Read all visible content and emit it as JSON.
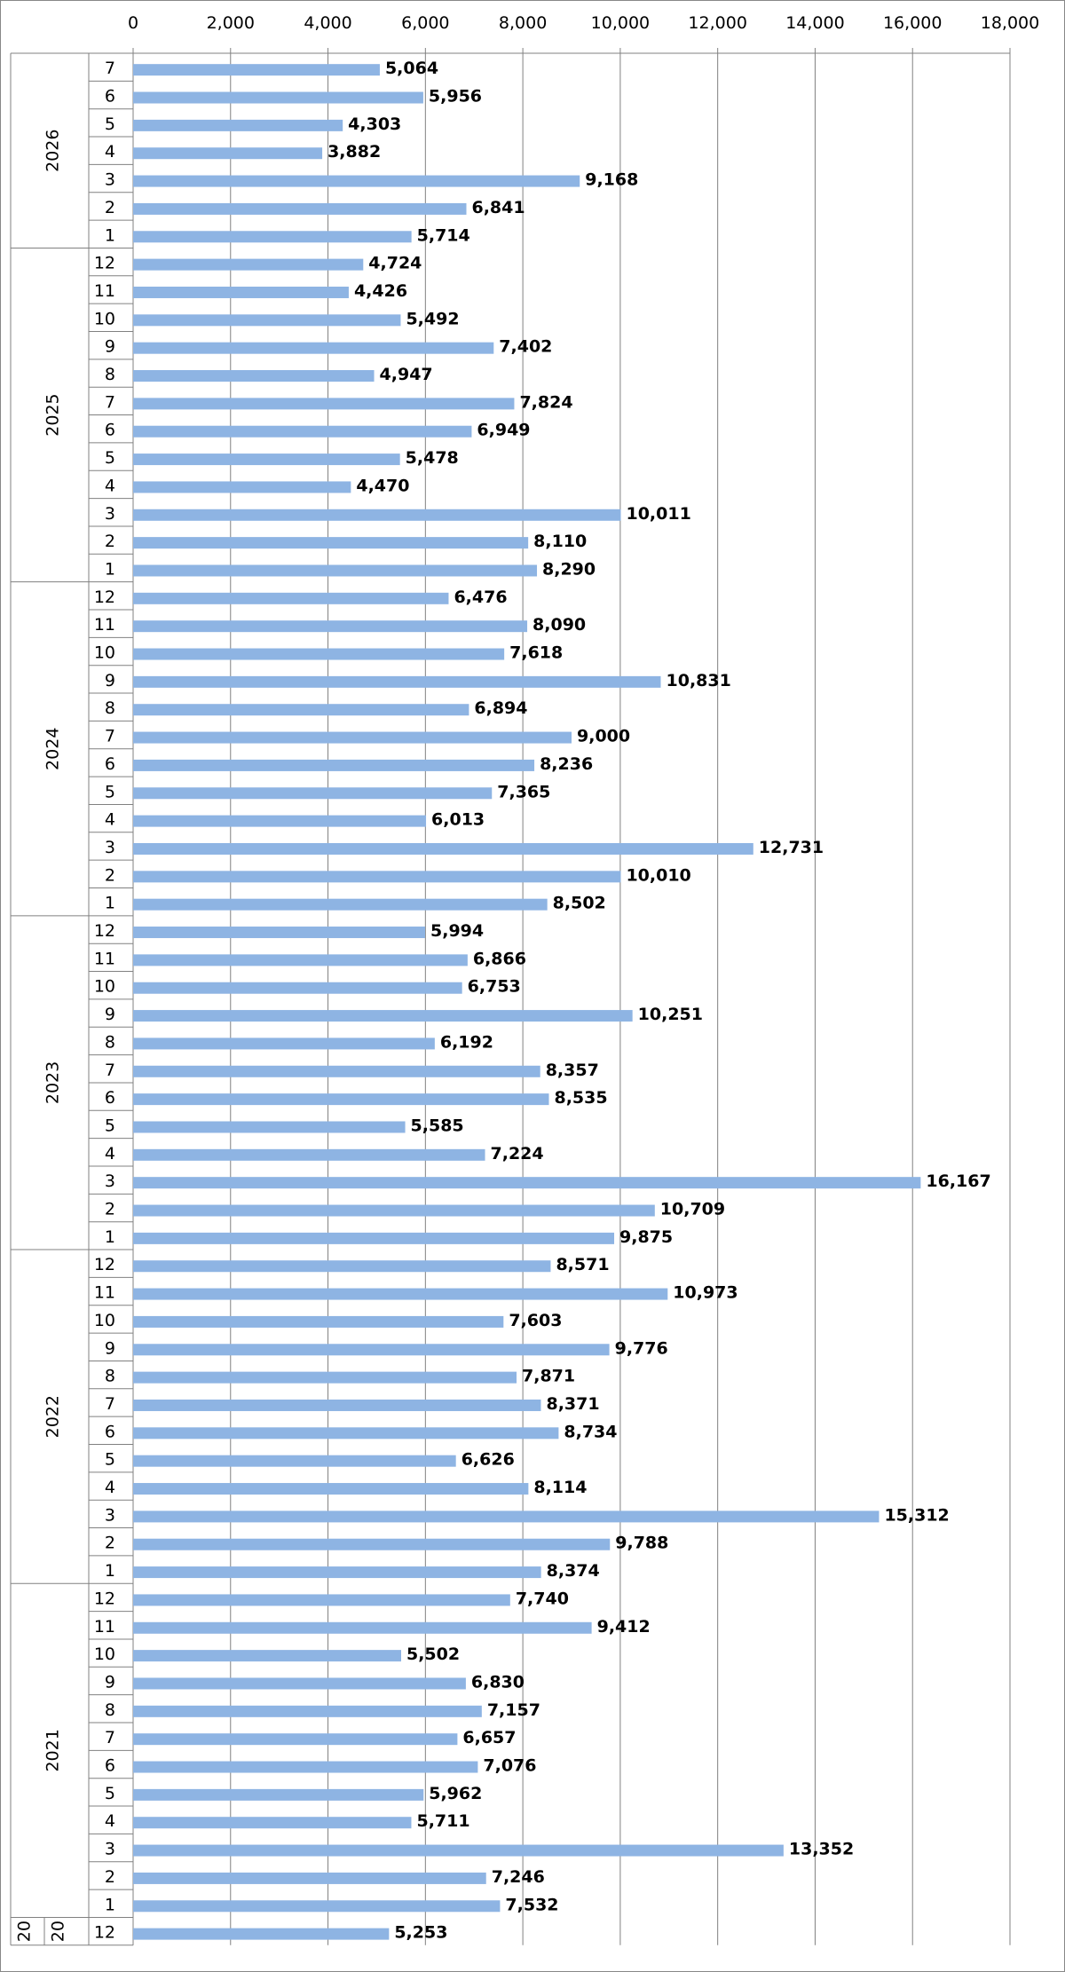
{
  "chart_data": {
    "type": "bar",
    "orientation": "horizontal",
    "title": "",
    "xlabel": "",
    "ylabel": "",
    "xlim": [
      0,
      18000
    ],
    "x_ticks": [
      "0",
      "2,000",
      "4,000",
      "6,000",
      "8,000",
      "10,000",
      "12,000",
      "14,000",
      "16,000",
      "18,000"
    ],
    "x_tick_values": [
      0,
      2000,
      4000,
      6000,
      8000,
      10000,
      12000,
      14000,
      16000,
      18000
    ],
    "grid": "vertical",
    "legend": "none",
    "bar_color": "#8EB4E3",
    "categories_top_to_bottom": [
      {
        "year": "2026",
        "months": [
          "7",
          "6",
          "5",
          "4",
          "3",
          "2",
          "1"
        ],
        "values": [
          5064,
          5956,
          4303,
          3882,
          9168,
          6841,
          5714
        ],
        "labels": [
          "5,064",
          "5,956",
          "4,303",
          "3,882",
          "9,168",
          "6,841",
          "5,714"
        ]
      },
      {
        "year": "2025",
        "months": [
          "12",
          "11",
          "10",
          "9",
          "8",
          "7",
          "6",
          "5",
          "4",
          "3",
          "2",
          "1"
        ],
        "values": [
          4724,
          4426,
          5492,
          7402,
          4947,
          7824,
          6949,
          5478,
          4470,
          10011,
          8110,
          8290
        ],
        "labels": [
          "4,724",
          "4,426",
          "5,492",
          "7,402",
          "4,947",
          "7,824",
          "6,949",
          "5,478",
          "4,470",
          "10,011",
          "8,110",
          "8,290"
        ]
      },
      {
        "year": "2024",
        "months": [
          "12",
          "11",
          "10",
          "9",
          "8",
          "7",
          "6",
          "5",
          "4",
          "3",
          "2",
          "1"
        ],
        "values": [
          6476,
          8090,
          7618,
          10831,
          6894,
          9000,
          8236,
          7365,
          6013,
          12731,
          10010,
          8502
        ],
        "labels": [
          "6,476",
          "8,090",
          "7,618",
          "10,831",
          "6,894",
          "9,000",
          "8,236",
          "7,365",
          "6,013",
          "12,731",
          "10,010",
          "8,502"
        ]
      },
      {
        "year": "2023",
        "months": [
          "12",
          "11",
          "10",
          "9",
          "8",
          "7",
          "6",
          "5",
          "4",
          "3",
          "2",
          "1"
        ],
        "values": [
          5994,
          6866,
          6753,
          10251,
          6192,
          8357,
          8535,
          5585,
          7224,
          16167,
          10709,
          9875
        ],
        "labels": [
          "5,994",
          "6,866",
          "6,753",
          "10,251",
          "6,192",
          "8,357",
          "8,535",
          "5,585",
          "7,224",
          "16,167",
          "10,709",
          "9,875"
        ]
      },
      {
        "year": "2022",
        "months": [
          "12",
          "11",
          "10",
          "9",
          "8",
          "7",
          "6",
          "5",
          "4",
          "3",
          "2",
          "1"
        ],
        "values": [
          8571,
          10973,
          7603,
          9776,
          7871,
          8371,
          8734,
          6626,
          8114,
          15312,
          9788,
          8374
        ],
        "labels": [
          "8,571",
          "10,973",
          "7,603",
          "9,776",
          "7,871",
          "8,371",
          "8,734",
          "6,626",
          "8,114",
          "15,312",
          "9,788",
          "8,374"
        ]
      },
      {
        "year": "2021",
        "months": [
          "12",
          "11",
          "10",
          "9",
          "8",
          "7",
          "6",
          "5",
          "4",
          "3",
          "2",
          "1"
        ],
        "values": [
          7740,
          9412,
          5502,
          6830,
          7157,
          6657,
          7076,
          5962,
          5711,
          13352,
          7246,
          7532
        ],
        "labels": [
          "7,740",
          "9,412",
          "5,502",
          "6,830",
          "7,157",
          "6,657",
          "7,076",
          "5,962",
          "5,711",
          "13,352",
          "7,246",
          "7,532"
        ]
      },
      {
        "year": "20 20",
        "year_parts": [
          "20",
          "20"
        ],
        "months": [
          "12"
        ],
        "values": [
          5253
        ],
        "labels": [
          "5,253"
        ]
      }
    ]
  }
}
